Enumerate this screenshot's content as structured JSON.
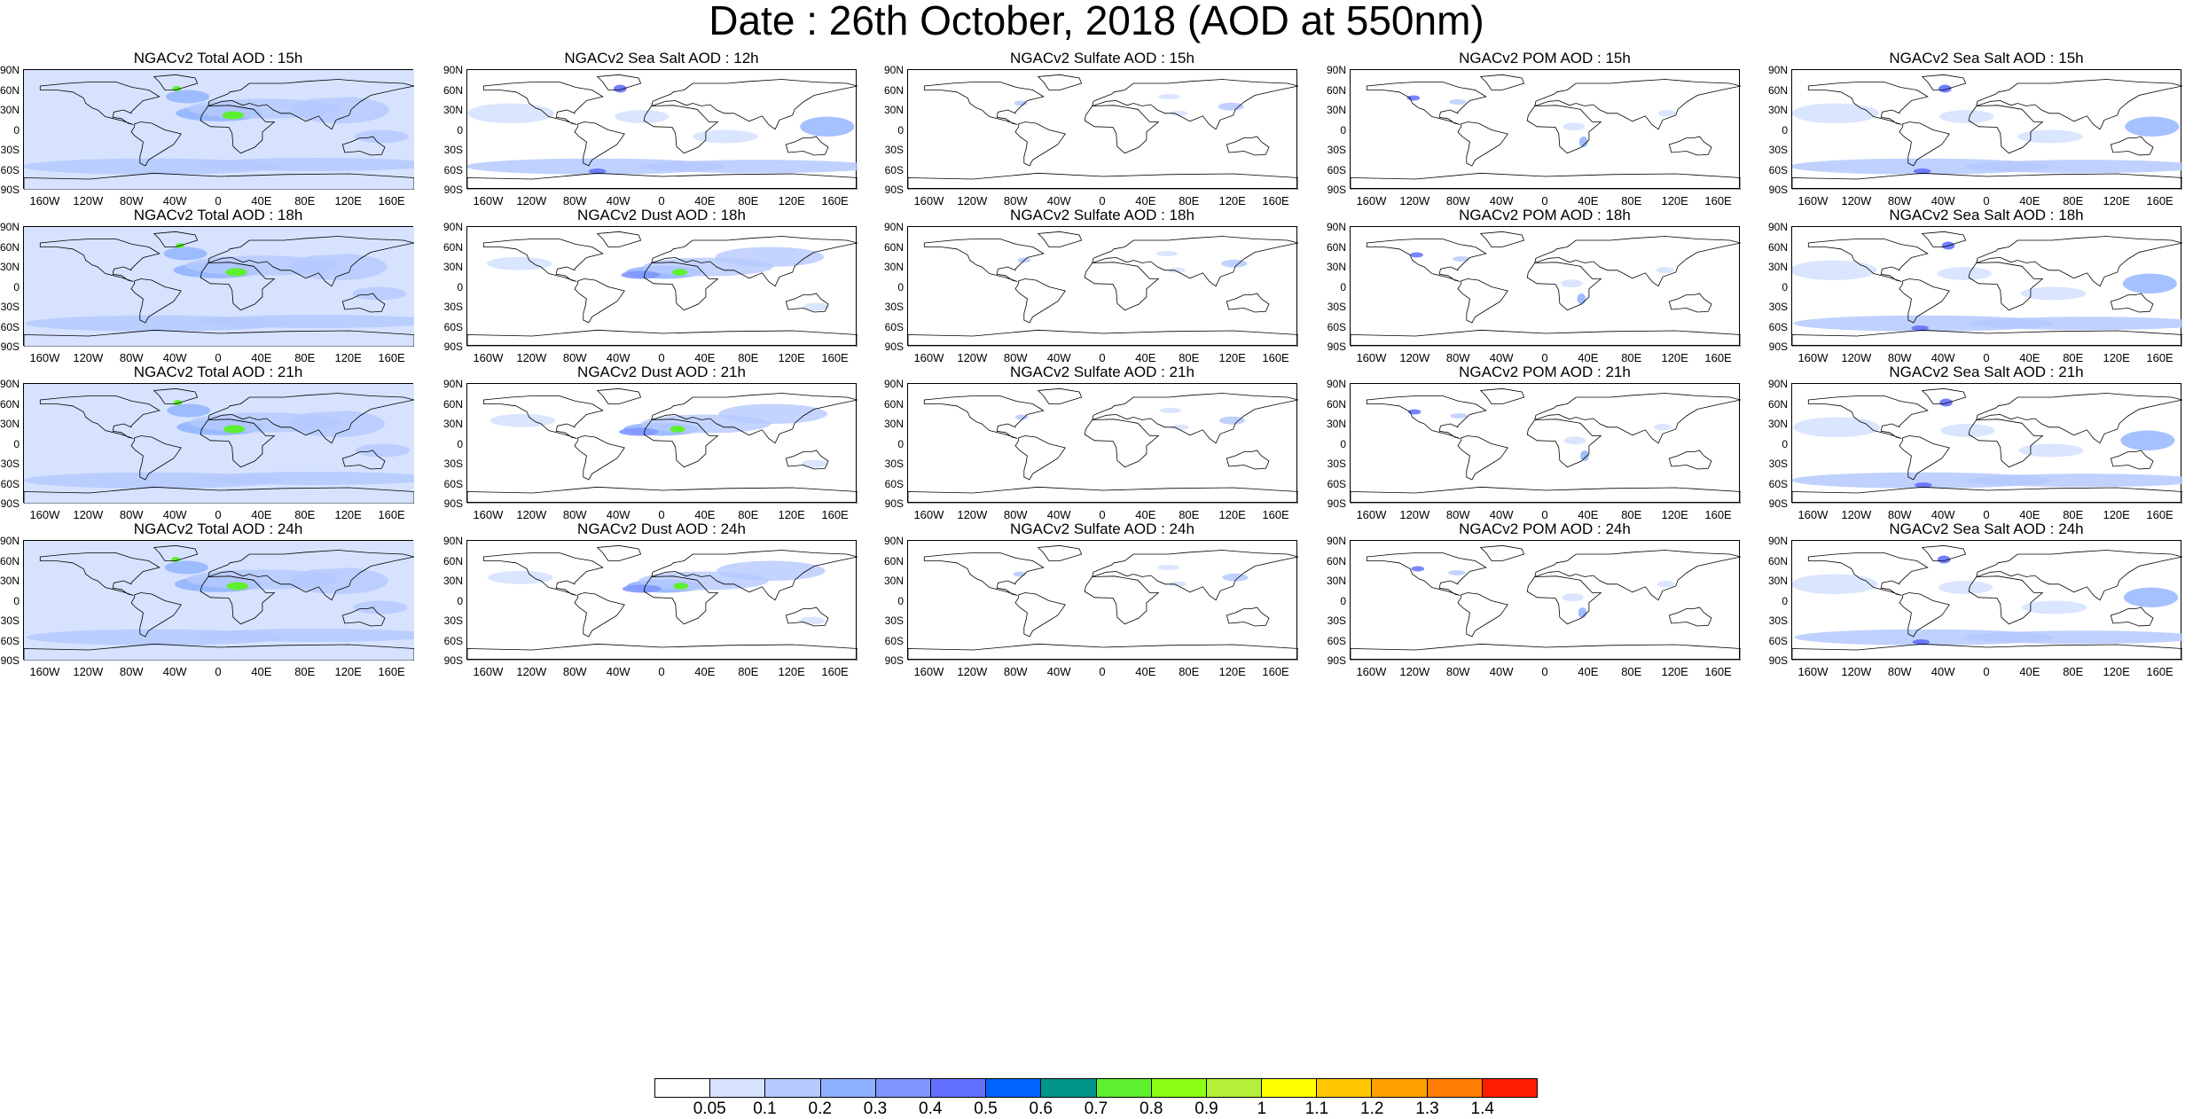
{
  "title": "Date : 26th October, 2018 (AOD at 550nm)",
  "lat_ticks": [
    "90N",
    "60N",
    "30N",
    "0",
    "30S",
    "60S",
    "90S"
  ],
  "lon_ticks": [
    "160W",
    "120W",
    "80W",
    "40W",
    "0",
    "40E",
    "80E",
    "120E",
    "160E"
  ],
  "panels": [
    [
      "NGACv2 Total AOD : 15h",
      "NGACv2 Sea Salt  AOD : 12h",
      "NGACv2 Sulfate AOD : 15h",
      "NGACv2 POM AOD : 15h",
      "NGACv2 Sea Salt AOD : 15h"
    ],
    [
      "NGACv2 Total AOD : 18h",
      "NGACv2 Dust AOD : 18h",
      "NGACv2 Sulfate AOD : 18h",
      "NGACv2 POM AOD : 18h",
      "NGACv2 Sea Salt AOD : 18h"
    ],
    [
      "NGACv2 Total AOD : 21h",
      "NGACv2 Dust AOD : 21h",
      "NGACv2 Sulfate AOD : 21h",
      "NGACv2 POM AOD : 21h",
      "NGACv2 Sea Salt AOD : 21h"
    ],
    [
      "NGACv2 Total AOD : 24h",
      "NGACv2 Dust AOD : 24h",
      "NGACv2 Sulfate AOD : 24h",
      "NGACv2 POM AOD : 24h",
      "NGACv2 Sea Salt  AOD : 24h"
    ]
  ],
  "colorbar": {
    "labels": [
      "0.05",
      "0.1",
      "0.2",
      "0.3",
      "0.4",
      "0.5",
      "0.6",
      "0.7",
      "0.8",
      "0.9",
      "1",
      "1.1",
      "1.2",
      "1.3",
      "1.4"
    ],
    "colors": [
      "#ffffff",
      "#d6e2ff",
      "#b5c9ff",
      "#8eb2ff",
      "#7f96ff",
      "#6370ff",
      "#0063ff",
      "#00968c",
      "#5eef2f",
      "#8cff14",
      "#b4ef3c",
      "#ffff00",
      "#ffc800",
      "#ffa000",
      "#ff7d00",
      "#ff1e00"
    ]
  }
}
